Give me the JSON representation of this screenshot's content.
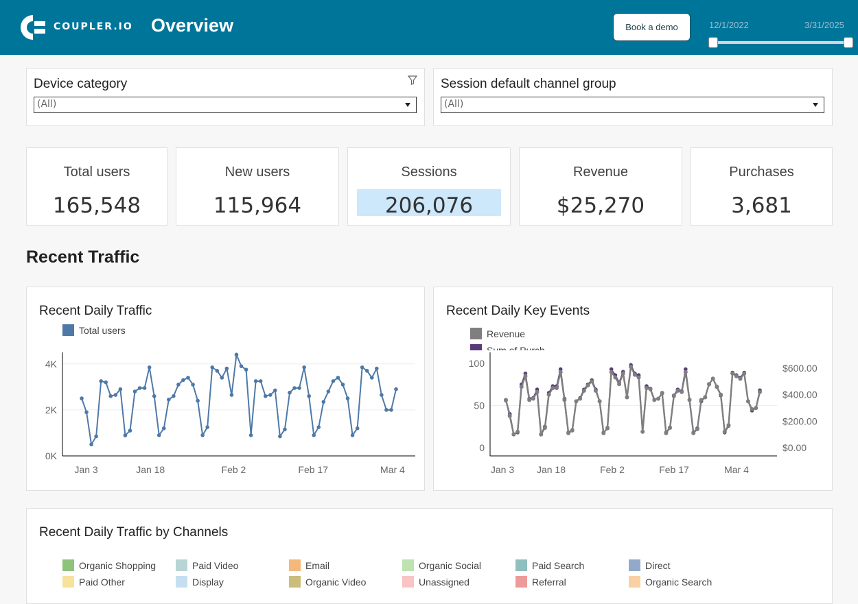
{
  "header": {
    "logo_text": "COUPLER.IO",
    "title": "Overview",
    "demo_button": "Book a demo",
    "date_start": "12/1/2022",
    "date_end": "3/31/2025"
  },
  "filters": [
    {
      "title": "Device category",
      "value": "(All)"
    },
    {
      "title": "Session default channel group",
      "value": "(All)"
    }
  ],
  "kpis": [
    {
      "label": "Total users",
      "value": "165,548"
    },
    {
      "label": "New users",
      "value": "115,964"
    },
    {
      "label": "Sessions",
      "value": "206,076"
    },
    {
      "label": "Revenue",
      "value": "$25,270"
    },
    {
      "label": "Purchases",
      "value": "3,681"
    }
  ],
  "section_title": "Recent Traffic",
  "colors": {
    "header": "#00759a",
    "traffic": "#4e79a7",
    "revenue": "#7f7f7f",
    "events": "#5a3a7a",
    "highlight": "#cde7fb"
  },
  "chart_data": [
    {
      "type": "line",
      "title": "Recent Daily Traffic",
      "series": [
        {
          "name": "Total users",
          "values": [
            2500,
            1900,
            500,
            850,
            3250,
            3200,
            2600,
            2650,
            2900,
            890,
            1100,
            2800,
            2950,
            2950,
            3850,
            2600,
            900,
            1200,
            2450,
            2600,
            3100,
            3300,
            3400,
            3100,
            2400,
            900,
            1250,
            3850,
            3700,
            3400,
            3800,
            2650,
            4400,
            3900,
            3750,
            900,
            3250,
            3250,
            2600,
            2650,
            2850,
            850,
            1150,
            2750,
            2950,
            2950,
            3850,
            2600,
            900,
            1250,
            2350,
            2800,
            3250,
            3400,
            3100,
            2500,
            900,
            1200,
            3850,
            3700,
            3400,
            3800,
            2650,
            2000,
            2000,
            2900
          ]
        }
      ],
      "x_ticks": [
        "Jan 3",
        "Jan 18",
        "Feb 2",
        "Feb 17",
        "Mar 4"
      ],
      "y_ticks": [
        "0K",
        "2K",
        "4K"
      ],
      "ylim": [
        0,
        4500
      ]
    },
    {
      "type": "line",
      "title": "Recent Daily Key Events",
      "legend": [
        "Revenue",
        "Sum of Purch..."
      ],
      "series": [
        {
          "name": "Revenue",
          "axis": "right",
          "values": [
            360,
            240,
            100,
            120,
            460,
            540,
            360,
            370,
            420,
            100,
            150,
            400,
            450,
            450,
            570,
            360,
            110,
            130,
            350,
            370,
            430,
            470,
            500,
            430,
            350,
            110,
            150,
            570,
            530,
            480,
            560,
            380,
            610,
            550,
            530,
            120,
            450,
            440,
            360,
            370,
            410,
            110,
            150,
            390,
            430,
            420,
            570,
            360,
            110,
            140,
            360,
            380,
            480,
            520,
            460,
            400,
            120,
            170,
            560,
            540,
            520,
            560,
            350,
            290,
            300,
            420
          ]
        },
        {
          "name": "Sum of Purch...",
          "axis": "left",
          "values": [
            56,
            40,
            16,
            18,
            75,
            88,
            58,
            59,
            69,
            16,
            25,
            65,
            73,
            73,
            93,
            58,
            18,
            21,
            55,
            59,
            69,
            75,
            80,
            69,
            55,
            18,
            23,
            93,
            86,
            77,
            90,
            60,
            98,
            88,
            86,
            19,
            73,
            70,
            57,
            58,
            65,
            18,
            24,
            62,
            69,
            67,
            93,
            57,
            18,
            23,
            55,
            60,
            75,
            82,
            72,
            62,
            18,
            26,
            89,
            86,
            83,
            89,
            55,
            44,
            47,
            68
          ]
        }
      ],
      "x_ticks": [
        "Jan 3",
        "Jan 18",
        "Feb 2",
        "Feb 17",
        "Mar 4"
      ],
      "y_ticks_left": [
        "0",
        "50",
        "100"
      ],
      "y_ticks_right": [
        "$0.00",
        "$200.00",
        "$400.00",
        "$600.00"
      ],
      "ylim_left": [
        0,
        110
      ],
      "ylim_right": [
        0,
        720
      ]
    }
  ],
  "channels_chart": {
    "title": "Recent Daily Traffic by Channels",
    "legend": [
      {
        "name": "Organic Shopping",
        "color": "#8fc27a"
      },
      {
        "name": "Paid Video",
        "color": "#b7d5d4"
      },
      {
        "name": "Email",
        "color": "#f5b87a"
      },
      {
        "name": "Organic Social",
        "color": "#bde3b0"
      },
      {
        "name": "Paid Search",
        "color": "#8fbfbf"
      },
      {
        "name": "Direct",
        "color": "#93a9c9"
      },
      {
        "name": "Paid Other",
        "color": "#f7e29b"
      },
      {
        "name": "Display",
        "color": "#c6dff0"
      },
      {
        "name": "Organic Video",
        "color": "#cbbd7a"
      },
      {
        "name": "Unassigned",
        "color": "#f8c4c4"
      },
      {
        "name": "Referral",
        "color": "#ef9a9a"
      },
      {
        "name": "Organic Search",
        "color": "#f9d0a4"
      }
    ]
  }
}
